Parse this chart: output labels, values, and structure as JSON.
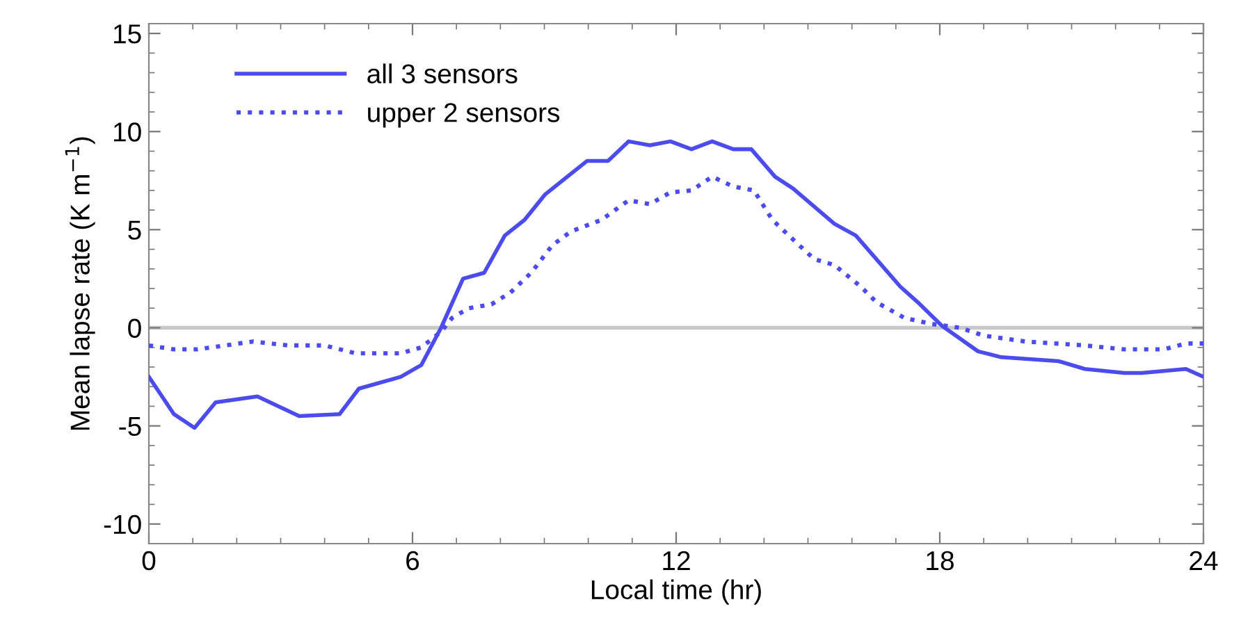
{
  "chart_data": {
    "type": "line",
    "xlabel": "Local time (hr)",
    "ylabel": "Mean lapse rate (K m$^{−1}$)",
    "xlim": [
      0,
      24
    ],
    "xticks": [
      0,
      6,
      12,
      18,
      24
    ],
    "ylim": [
      -11,
      15.5
    ],
    "yticks": [
      -10,
      -5,
      0,
      5,
      10,
      15
    ],
    "grid": false,
    "legend": "top left",
    "marker": "none",
    "ref_lines": [
      {
        "axis": "y",
        "value": 0,
        "color": "#c8c8c8",
        "line_style": "solid"
      }
    ],
    "series": [
      {
        "name": "all 3 sensors",
        "color": "#4b4bf0",
        "line_style": "solid",
        "x": [
          0,
          0.57,
          1.04,
          1.52,
          2.47,
          3.42,
          4.34,
          4.78,
          5.73,
          6.2,
          6.65,
          7.15,
          7.63,
          8.1,
          8.55,
          9.02,
          9.97,
          10.45,
          10.92,
          11.4,
          11.87,
          12.35,
          12.82,
          13.3,
          13.71,
          14.25,
          14.66,
          15.6,
          16.09,
          17.1,
          17.5,
          18.05,
          18.87,
          19.4,
          20.7,
          21.3,
          22.2,
          22.6,
          23.6,
          24
        ],
        "values": [
          -2.5,
          -4.4,
          -5.1,
          -3.8,
          -3.5,
          -4.5,
          -4.4,
          -3.1,
          -2.5,
          -1.9,
          0,
          2.5,
          2.8,
          4.7,
          5.5,
          6.8,
          8.5,
          8.5,
          9.5,
          9.3,
          9.5,
          9.1,
          9.5,
          9.1,
          9.1,
          7.7,
          7.1,
          5.3,
          4.7,
          2.1,
          1.3,
          0.1,
          -1.2,
          -1.5,
          -1.7,
          -2.1,
          -2.3,
          -2.3,
          -2.1,
          -2.5
        ]
      },
      {
        "name": "upper 2 sensors",
        "color": "#4b4bf0",
        "line_style": "dotted",
        "x": [
          0,
          0.57,
          1.1,
          2.37,
          3.17,
          4.0,
          4.7,
          5.73,
          6.2,
          6.65,
          6.9,
          7.28,
          7.8,
          8.23,
          8.7,
          9.18,
          9.6,
          10.3,
          10.92,
          11.4,
          11.87,
          12.35,
          12.82,
          13.3,
          13.77,
          14.19,
          14.66,
          15.14,
          15.6,
          16.2,
          16.56,
          17.2,
          17.8,
          18.46,
          19.0,
          19.95,
          21.3,
          22.2,
          23.1,
          23.6,
          24
        ],
        "values": [
          -0.9,
          -1.1,
          -1.1,
          -0.7,
          -0.9,
          -0.9,
          -1.3,
          -1.3,
          -1.0,
          -0.2,
          0.5,
          1.0,
          1.2,
          1.8,
          2.8,
          4.2,
          4.9,
          5.5,
          6.5,
          6.3,
          6.9,
          7.0,
          7.7,
          7.2,
          7.0,
          5.5,
          4.5,
          3.5,
          3.2,
          2.1,
          1.3,
          0.5,
          0.2,
          0,
          -0.4,
          -0.7,
          -0.9,
          -1.1,
          -1.1,
          -0.8,
          -0.8
        ]
      }
    ]
  }
}
